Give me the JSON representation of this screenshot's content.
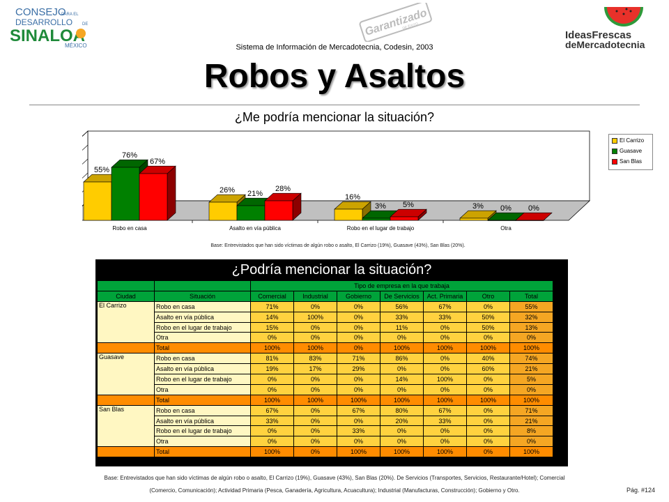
{
  "header": {
    "logo_left_lines": [
      "CONSEJO",
      "DESARROLLO",
      "SINALOA",
      "MÉXICO"
    ],
    "logo_left_small": [
      "PARA EL",
      "DE"
    ],
    "logo_center_text": [
      "Garantizado",
      "DE ÉXITO"
    ],
    "logo_right_lines": [
      "IdeasFrescas",
      "deMercadotecnia"
    ],
    "system_line": "Sistema de Información de Mercadotecnia, Codesin, 2003",
    "title": "Robos y Asaltos"
  },
  "question": "¿Me podría mencionar la situación?",
  "chart_data": {
    "type": "bar",
    "categories": [
      "Robo en casa",
      "Asalto en vía pública",
      "Robo en el lugar de trabajo",
      "Otra"
    ],
    "series": [
      {
        "name": "El Carrizo",
        "values": [
          55,
          26,
          16,
          3
        ],
        "labels": [
          "55%",
          "26%",
          "16%",
          "3%"
        ],
        "color": "#ffcc00"
      },
      {
        "name": "Guasave",
        "values": [
          76,
          21,
          3,
          0
        ],
        "labels": [
          "76%",
          "21%",
          "3%",
          "0%"
        ],
        "color": "#008000"
      },
      {
        "name": "San Blas",
        "values": [
          67,
          28,
          5,
          0
        ],
        "labels": [
          "67%",
          "28%",
          "5%",
          "0%"
        ],
        "color": "#ff0000"
      }
    ],
    "ylim": [
      0,
      100
    ],
    "yticks": [
      "0%",
      "20%",
      "40%",
      "60%",
      "80%",
      "100%"
    ],
    "legend_position": "right",
    "grid": false
  },
  "base1": "Base: Entrevistados que han sido víctimas de algún robo o asalto, El Carrizo (19%), Guasave (43%), San Blas (20%).",
  "table": {
    "title": "¿Podría mencionar la situación?",
    "group_header": "Tipo de empresa en la que trabaja",
    "col_city": "Ciudad",
    "col_situation": "Situación",
    "columns": [
      "Comercial",
      "Industrial",
      "Gobierno",
      "De Servicios",
      "Act. Primaria",
      "Otro",
      "Total"
    ],
    "groups": [
      {
        "city": "El Carrizo",
        "rows": [
          {
            "label": "Robo en casa",
            "values": [
              "71%",
              "0%",
              "0%",
              "56%",
              "67%",
              "0%",
              "55%"
            ]
          },
          {
            "label": "Asalto en vía pública",
            "values": [
              "14%",
              "100%",
              "0%",
              "33%",
              "33%",
              "50%",
              "32%"
            ]
          },
          {
            "label": "Robo en el lugar de trabajo",
            "values": [
              "15%",
              "0%",
              "0%",
              "11%",
              "0%",
              "50%",
              "13%"
            ]
          },
          {
            "label": "Otra",
            "values": [
              "0%",
              "0%",
              "0%",
              "0%",
              "0%",
              "0%",
              "0%"
            ]
          },
          {
            "label": "Total",
            "values": [
              "100%",
              "100%",
              "0%",
              "100%",
              "100%",
              "100%",
              "100%"
            ]
          }
        ]
      },
      {
        "city": "Guasave",
        "rows": [
          {
            "label": "Robo en casa",
            "values": [
              "81%",
              "83%",
              "71%",
              "86%",
              "0%",
              "40%",
              "74%"
            ]
          },
          {
            "label": "Asalto en vía pública",
            "values": [
              "19%",
              "17%",
              "29%",
              "0%",
              "0%",
              "60%",
              "21%"
            ]
          },
          {
            "label": "Robo en el lugar de trabajo",
            "values": [
              "0%",
              "0%",
              "0%",
              "14%",
              "100%",
              "0%",
              "5%"
            ]
          },
          {
            "label": "Otra",
            "values": [
              "0%",
              "0%",
              "0%",
              "0%",
              "0%",
              "0%",
              "0%"
            ]
          },
          {
            "label": "Total",
            "values": [
              "100%",
              "100%",
              "100%",
              "100%",
              "100%",
              "100%",
              "100%"
            ]
          }
        ]
      },
      {
        "city": "San Blas",
        "rows": [
          {
            "label": "Robo en casa",
            "values": [
              "67%",
              "0%",
              "67%",
              "80%",
              "67%",
              "0%",
              "71%"
            ]
          },
          {
            "label": "Asalto en vía pública",
            "values": [
              "33%",
              "0%",
              "0%",
              "20%",
              "33%",
              "0%",
              "21%"
            ]
          },
          {
            "label": "Robo en el lugar de trabajo",
            "values": [
              "0%",
              "0%",
              "33%",
              "0%",
              "0%",
              "0%",
              "8%"
            ]
          },
          {
            "label": "Otra",
            "values": [
              "0%",
              "0%",
              "0%",
              "0%",
              "0%",
              "0%",
              "0%"
            ]
          },
          {
            "label": "Total",
            "values": [
              "100%",
              "0%",
              "100%",
              "100%",
              "100%",
              "0%",
              "100%"
            ]
          }
        ]
      }
    ]
  },
  "base2_line1": "Base: Entrevistados que han sido víctimas de algún robo o asalto, El Carrizo (19%), Guasave (43%), San Blas (20%). De Servicios (Transportes, Servicios, Restaurante/Hotel); Comercial",
  "base2_line2": "(Comercio, Comunicación); Actividad Primaria (Pesca, Ganadería, Agricultura, Acuacultura); Industrial (Manufacturas, Construcción); Gobierno y Otro.",
  "page_number": "Pág. #124"
}
